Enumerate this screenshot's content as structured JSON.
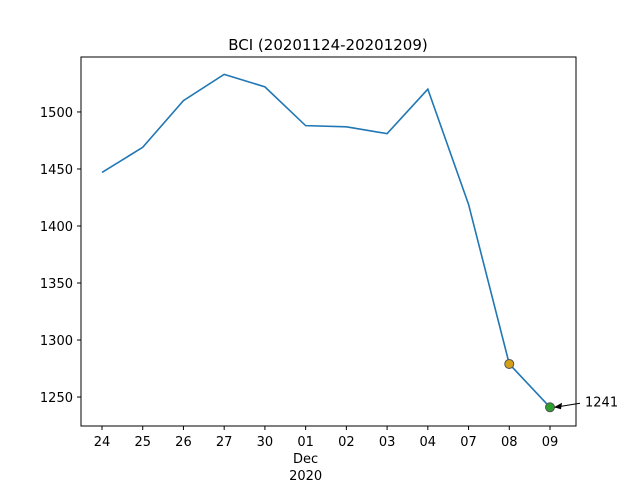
{
  "chart_data": {
    "type": "line",
    "title": "BCI (20201124-20201209)",
    "categories": [
      "24",
      "25",
      "26",
      "27",
      "30",
      "01",
      "02",
      "03",
      "04",
      "07",
      "08",
      "09"
    ],
    "month_label": "Dec",
    "year_label": "2020",
    "series": [
      {
        "color": "#1f77b4",
        "values": [
          1447,
          1469,
          1510,
          1533,
          1522,
          1488,
          1487,
          1481,
          1520,
          1419,
          1279,
          1241
        ]
      }
    ],
    "highlight_points": [
      {
        "index": 10,
        "color": "#d4a017"
      },
      {
        "index": 11,
        "color": "#2ca02c"
      }
    ],
    "annotation": "1241",
    "ylim": [
      1224.6,
      1548.2
    ],
    "yticks": [
      1250,
      1300,
      1350,
      1400,
      1450,
      1500
    ],
    "grid": false
  }
}
